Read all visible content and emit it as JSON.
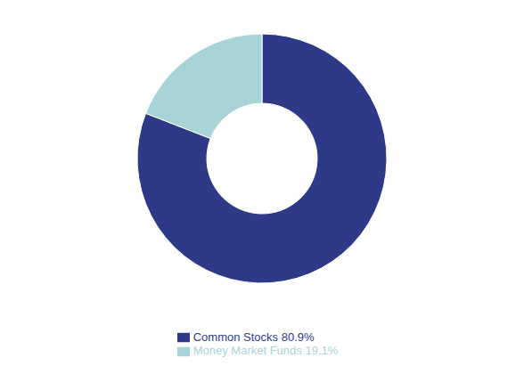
{
  "chart_data": {
    "type": "pie",
    "categories": [
      "Common Stocks 80.9%",
      "Money Market Funds 19.1%"
    ],
    "values": [
      80.9,
      19.1
    ],
    "colors": [
      "#2E3A87",
      "#A8D4D8"
    ],
    "legend": "bottom"
  }
}
